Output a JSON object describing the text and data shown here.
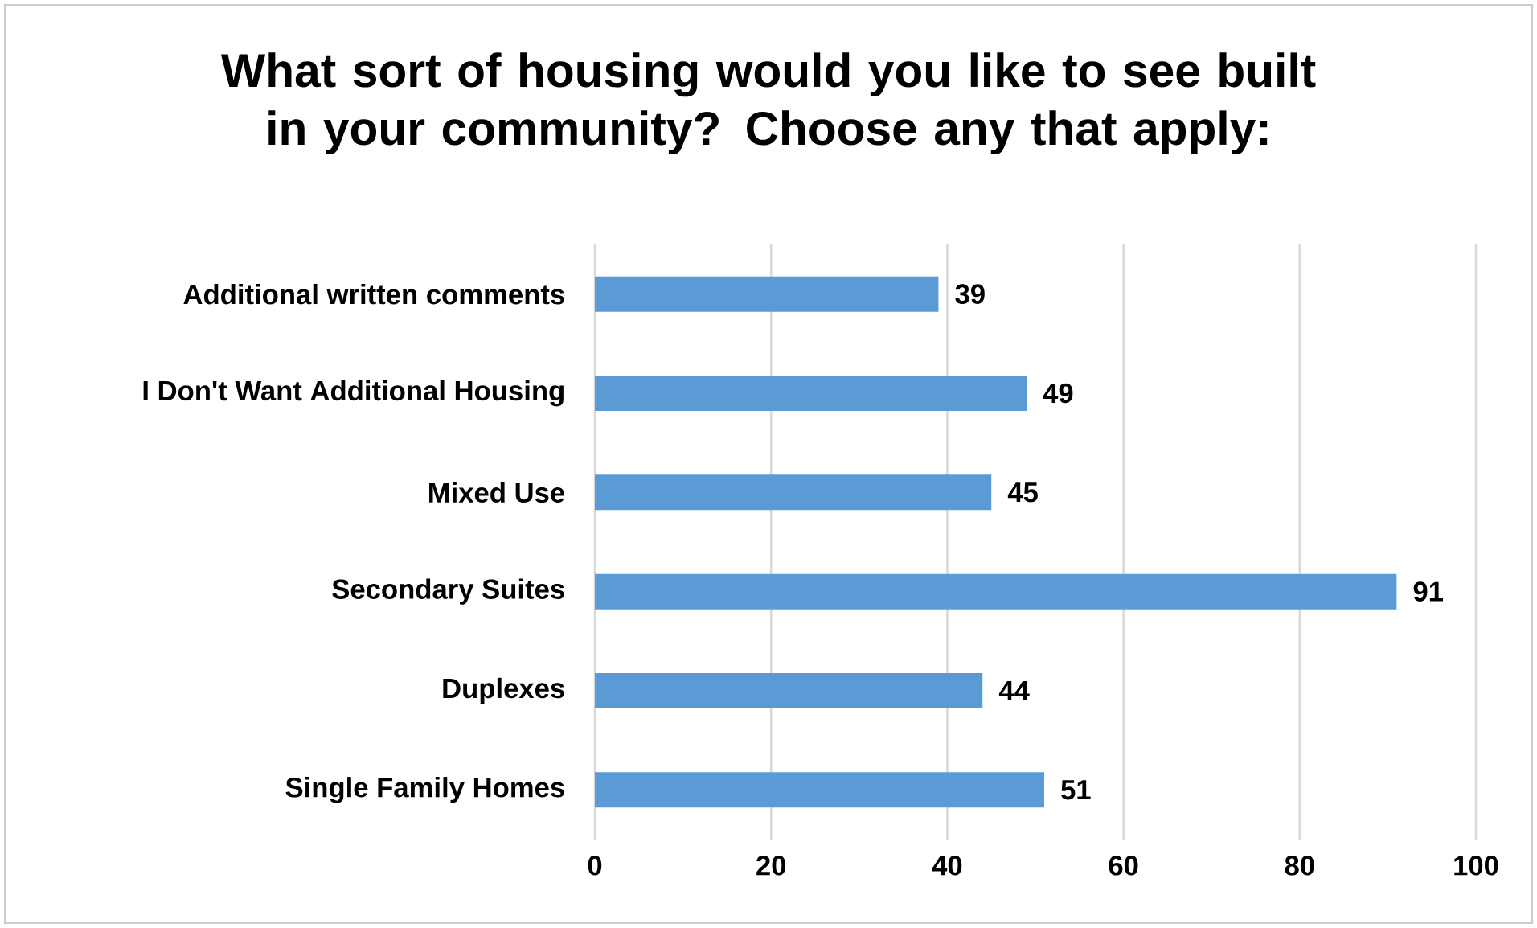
{
  "chart_data": {
    "type": "bar",
    "orientation": "horizontal",
    "title": "What sort of housing would you like to see built in your community? Choose any that apply:",
    "categories": [
      "Additional written comments",
      "I Don't Want Additional Housing",
      "Mixed Use",
      "Secondary Suites",
      "Duplexes",
      "Single Family Homes"
    ],
    "values": [
      39,
      49,
      45,
      91,
      44,
      51
    ],
    "color": "#5b9bd5",
    "xlim": [
      0,
      100
    ],
    "xticks": [
      0,
      20,
      40,
      60,
      80,
      100
    ],
    "grid": "x",
    "data_labels": true
  }
}
